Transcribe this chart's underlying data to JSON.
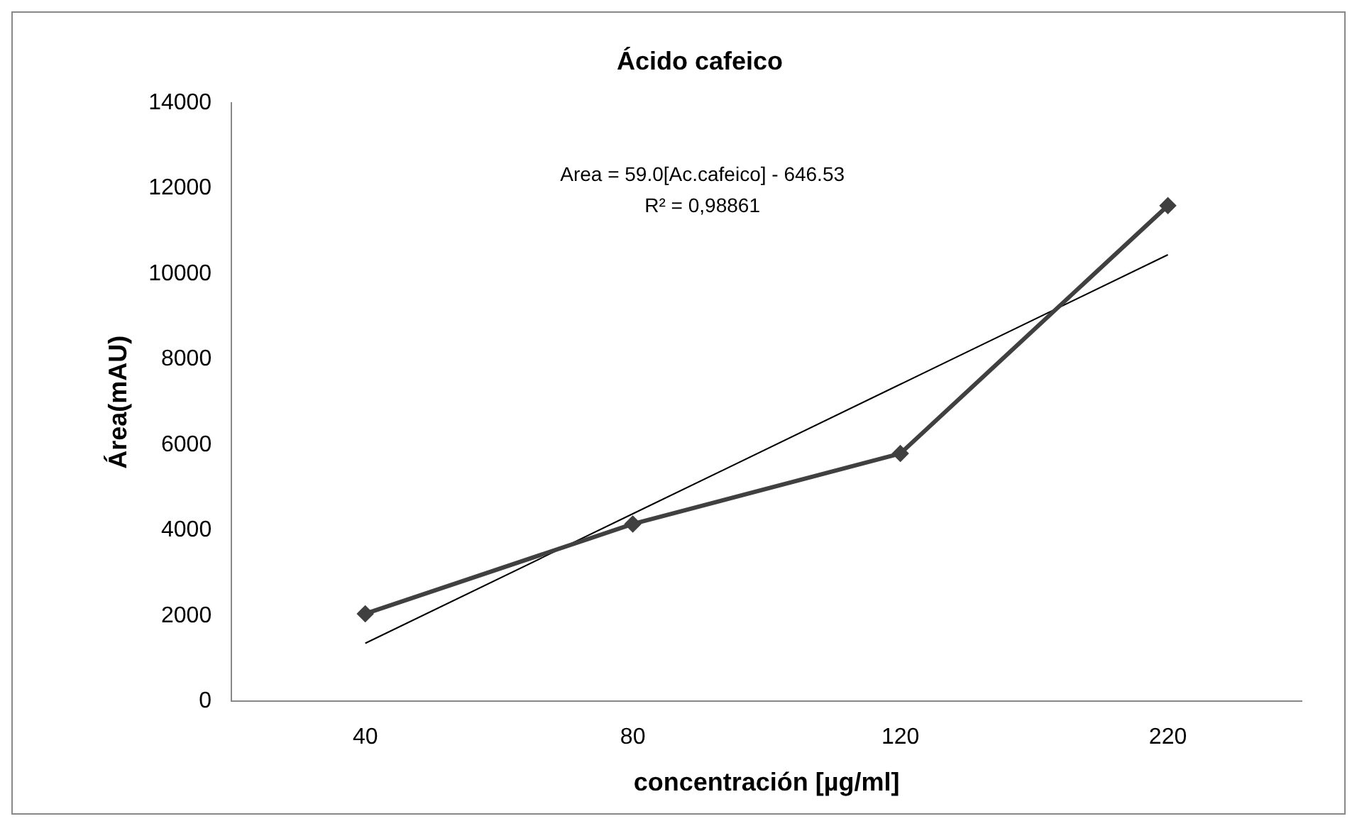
{
  "chart_data": {
    "type": "line",
    "title": "Ácido cafeico",
    "xlabel": "concentración [µg/ml]",
    "ylabel": "Área(mAU)",
    "categories": [
      "40",
      "80",
      "120",
      "220"
    ],
    "series": [
      {
        "color": "#404040",
        "values": [
          2050,
          4150,
          5800,
          11600
        ]
      },
      {
        "color": "#000000",
        "values": [
          1360,
          4390,
          7420,
          10450
        ],
        "marker": "none"
      }
    ],
    "ylim": [
      0,
      14000
    ],
    "yticks": [
      0,
      2000,
      4000,
      6000,
      8000,
      10000,
      12000,
      14000
    ],
    "grid": false,
    "legend": false,
    "marker": "diamond",
    "line_style": "solid",
    "annotations": [
      "Area = 59.0[Ac.cafeico] - 646.53",
      "R² = 0,98861"
    ]
  }
}
